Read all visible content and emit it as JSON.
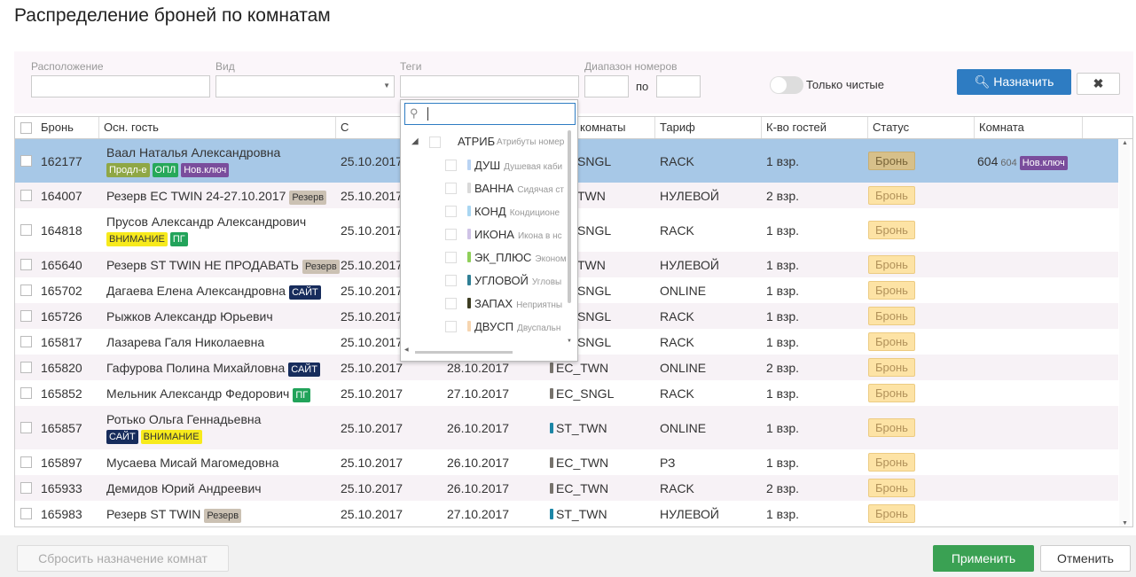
{
  "title": "Распределение броней по комнатам",
  "filters": {
    "location_label": "Расположение",
    "type_label": "Вид",
    "tags_label": "Теги",
    "range_label": "Диапазон номеров",
    "range_to": "по",
    "clean_only": "Только чистые",
    "assign_button": "Назначить"
  },
  "tags_dropdown": {
    "group": {
      "name": "АТРИБ",
      "desc": "Атрибуты номер"
    },
    "items": [
      {
        "name": "ДУШ",
        "desc": "Душевая каби",
        "color": "#b9d3f3"
      },
      {
        "name": "ВАННА",
        "desc": "Сидячая ст",
        "color": "#d9d9d9"
      },
      {
        "name": "КОНД",
        "desc": "Кондиционе",
        "color": "#a9d6f2"
      },
      {
        "name": "ИКОНА",
        "desc": "Икона в нс",
        "color": "#cfc3e6"
      },
      {
        "name": "ЭК_ПЛЮС",
        "desc": "Эконом",
        "color": "#8fcf5a"
      },
      {
        "name": "УГЛОВОЙ",
        "desc": "Угловы",
        "color": "#2f7f95"
      },
      {
        "name": "ЗАПАХ",
        "desc": "Неприятны",
        "color": "#3d3d22"
      },
      {
        "name": "ДВУСП",
        "desc": "Двуспальн",
        "color": "#f6d5b0"
      }
    ]
  },
  "table": {
    "columns": [
      "Бронь",
      "Осн. гость",
      "С",
      null,
      "комнаты",
      "Тариф",
      "К-во гостей",
      "Статус",
      "Комната"
    ],
    "rows": [
      {
        "id": "162177",
        "guest": "Ваал Наталья Александровна",
        "tags": [
          {
            "text": "Продл-е",
            "color": "#8fa745",
            "text_color": "#ffffff"
          },
          {
            "text": "ОПЛ",
            "color": "#27a85a",
            "text_color": "#ffffff"
          },
          {
            "text": "Нов.ключ",
            "color": "#7a4d9c",
            "text_color": "#ffffff"
          }
        ],
        "from": "25.10.2017",
        "to": null,
        "room_type": "SNGL",
        "room_type_color": null,
        "rate": "RACK",
        "guests": "1 взр.",
        "status": "Бронь",
        "room": {
          "number": "604",
          "sub": "604",
          "tag": {
            "text": "Нов.ключ",
            "color": "#7a4d9c",
            "text_color": "#ffffff"
          }
        },
        "selected": true
      },
      {
        "id": "164007",
        "guest": "Резерв EC TWIN 24-27.10.2017",
        "tags": [
          {
            "text": "Резерв",
            "color": "#cbc1b3",
            "text_color": "#333333"
          }
        ],
        "from": "25.10.2017",
        "to": null,
        "room_type": "TWN",
        "room_type_color": null,
        "rate": "НУЛЕВОЙ",
        "guests": "2 взр.",
        "status": "Бронь"
      },
      {
        "id": "164818",
        "guest": "Прусов Александр Александрович",
        "tags": [
          {
            "text": "ВНИМАНИЕ",
            "color": "#f7ea1c",
            "text_color": "#333333"
          },
          {
            "text": "ПГ",
            "color": "#22a35a",
            "text_color": "#ffffff"
          }
        ],
        "from": "25.10.2017",
        "to": null,
        "room_type": "SNGL",
        "room_type_color": null,
        "rate": "RACK",
        "guests": "1 взр.",
        "status": "Бронь"
      },
      {
        "id": "165640",
        "guest": "Резерв ST TWIN НЕ ПРОДАВАТЬ",
        "tags": [
          {
            "text": "Резерв",
            "color": "#cbc1b3",
            "text_color": "#333333"
          }
        ],
        "from": "25.10.2017",
        "to": null,
        "room_type": "TWN",
        "room_type_color": null,
        "rate": "НУЛЕВОЙ",
        "guests": "1 взр.",
        "status": "Бронь"
      },
      {
        "id": "165702",
        "guest": "Дагаева Елена Александровна",
        "tags": [
          {
            "text": "САЙТ",
            "color": "#172c5c",
            "text_color": "#ffffff"
          }
        ],
        "from": "25.10.2017",
        "to": null,
        "room_type": "SNGL",
        "room_type_color": null,
        "rate": "ONLINE",
        "guests": "1 взр.",
        "status": "Бронь"
      },
      {
        "id": "165726",
        "guest": "Рыжков Александр Юрьевич",
        "tags": [],
        "from": "25.10.2017",
        "to": null,
        "room_type": "SNGL",
        "room_type_color": null,
        "rate": "RACK",
        "guests": "1 взр.",
        "status": "Бронь"
      },
      {
        "id": "165817",
        "guest": "Лазарева Галя  Николаевна",
        "tags": [],
        "from": "25.10.2017",
        "to": null,
        "room_type": "SNGL",
        "room_type_color": null,
        "rate": "RACK",
        "guests": "1 взр.",
        "status": "Бронь"
      },
      {
        "id": "165820",
        "guest": "Гафурова Полина Михайловна",
        "tags": [
          {
            "text": "САЙТ",
            "color": "#172c5c",
            "text_color": "#ffffff"
          }
        ],
        "from": "25.10.2017",
        "to": "28.10.2017",
        "room_type": "EC_TWN",
        "room_type_color": "#77736d",
        "rate": "ONLINE",
        "guests": "2 взр.",
        "status": "Бронь"
      },
      {
        "id": "165852",
        "guest": "Мельник Александр Федорович",
        "tags": [
          {
            "text": "ПГ",
            "color": "#22a35a",
            "text_color": "#ffffff"
          }
        ],
        "from": "25.10.2017",
        "to": "27.10.2017",
        "room_type": "EC_SNGL",
        "room_type_color": "#77736d",
        "rate": "RACK",
        "guests": "1 взр.",
        "status": "Бронь"
      },
      {
        "id": "165857",
        "guest": "Ротько Ольга Геннадьевна",
        "tags": [
          {
            "text": "САЙТ",
            "color": "#172c5c",
            "text_color": "#ffffff"
          },
          {
            "text": "ВНИМАНИЕ",
            "color": "#f7ea1c",
            "text_color": "#333333"
          }
        ],
        "from": "25.10.2017",
        "to": "26.10.2017",
        "room_type": "ST_TWN",
        "room_type_color": "#1c86a6",
        "rate": "ONLINE",
        "guests": "1 взр.",
        "status": "Бронь"
      },
      {
        "id": "165897",
        "guest": "Мусаева Мисай Магомедовна",
        "tags": [],
        "from": "25.10.2017",
        "to": "26.10.2017",
        "room_type": "EC_TWN",
        "room_type_color": "#77736d",
        "rate": "РЗ",
        "guests": "1 взр.",
        "status": "Бронь"
      },
      {
        "id": "165933",
        "guest": "Демидов Юрий Андреевич",
        "tags": [],
        "from": "25.10.2017",
        "to": "26.10.2017",
        "room_type": "EC_TWN",
        "room_type_color": "#77736d",
        "rate": "RACK",
        "guests": "2 взр.",
        "status": "Бронь"
      },
      {
        "id": "165983",
        "guest": "Резерв ST TWIN",
        "tags": [
          {
            "text": "Резерв",
            "color": "#cbc1b3",
            "text_color": "#333333"
          }
        ],
        "from": "25.10.2017",
        "to": "27.10.2017",
        "room_type": "ST_TWN",
        "room_type_color": "#1c86a6",
        "rate": "НУЛЕВОЙ",
        "guests": "1 взр.",
        "status": "Бронь"
      }
    ]
  },
  "footer": {
    "reset": "Сбросить назначение комнат",
    "apply": "Применить",
    "cancel": "Отменить"
  }
}
